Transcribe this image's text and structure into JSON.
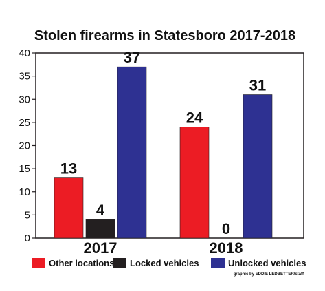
{
  "chart_data": {
    "type": "bar",
    "title": "Stolen firearms in Statesboro 2017-2018",
    "categories": [
      "2017",
      "2018"
    ],
    "series": [
      {
        "name": "Other locations",
        "values": [
          13,
          24
        ],
        "color": "#ec1c24"
      },
      {
        "name": "Locked vehicles",
        "values": [
          4,
          0
        ],
        "color": "#231f20"
      },
      {
        "name": "Unlocked vehicles",
        "values": [
          37,
          31
        ],
        "color": "#2e3192"
      }
    ],
    "ylim": [
      0,
      40
    ],
    "yticks": [
      0,
      5,
      10,
      15,
      20,
      25,
      30,
      35,
      40
    ],
    "xlabel": "",
    "ylabel": "",
    "grid": false,
    "legend_position": "bottom"
  },
  "credit": "graphic by EDDIE LEDBETTER/staff"
}
